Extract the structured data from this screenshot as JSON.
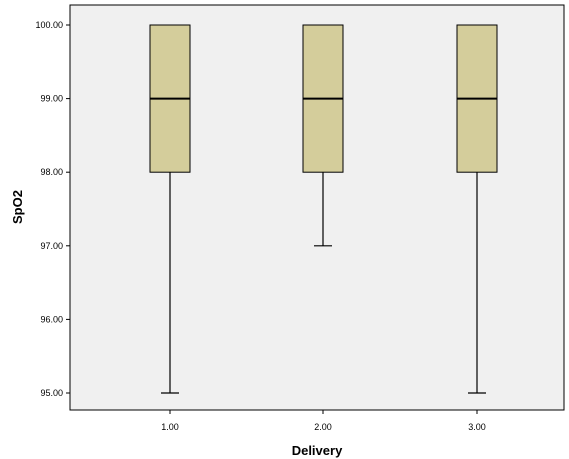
{
  "chart_data": {
    "type": "box",
    "xlabel": "Delivery",
    "ylabel": "SpO2",
    "ylim": [
      94.6,
      100.25
    ],
    "yticks": [
      "95.00",
      "96.00",
      "97.00",
      "98.00",
      "99.00",
      "100.00"
    ],
    "categories": [
      "1.00",
      "2.00",
      "3.00"
    ],
    "boxes": [
      {
        "category": "1.00",
        "min": 95,
        "q1": 98,
        "median": 99,
        "q3": 100,
        "max": 100
      },
      {
        "category": "2.00",
        "min": 97,
        "q1": 98,
        "median": 99,
        "q3": 100,
        "max": 100
      },
      {
        "category": "3.00",
        "min": 95,
        "q1": 98,
        "median": 99,
        "q3": 100,
        "max": 100
      }
    ],
    "colors": {
      "box_fill": "#d4cd9b",
      "plot_background": "#f0f0f0",
      "line": "#000000"
    }
  }
}
